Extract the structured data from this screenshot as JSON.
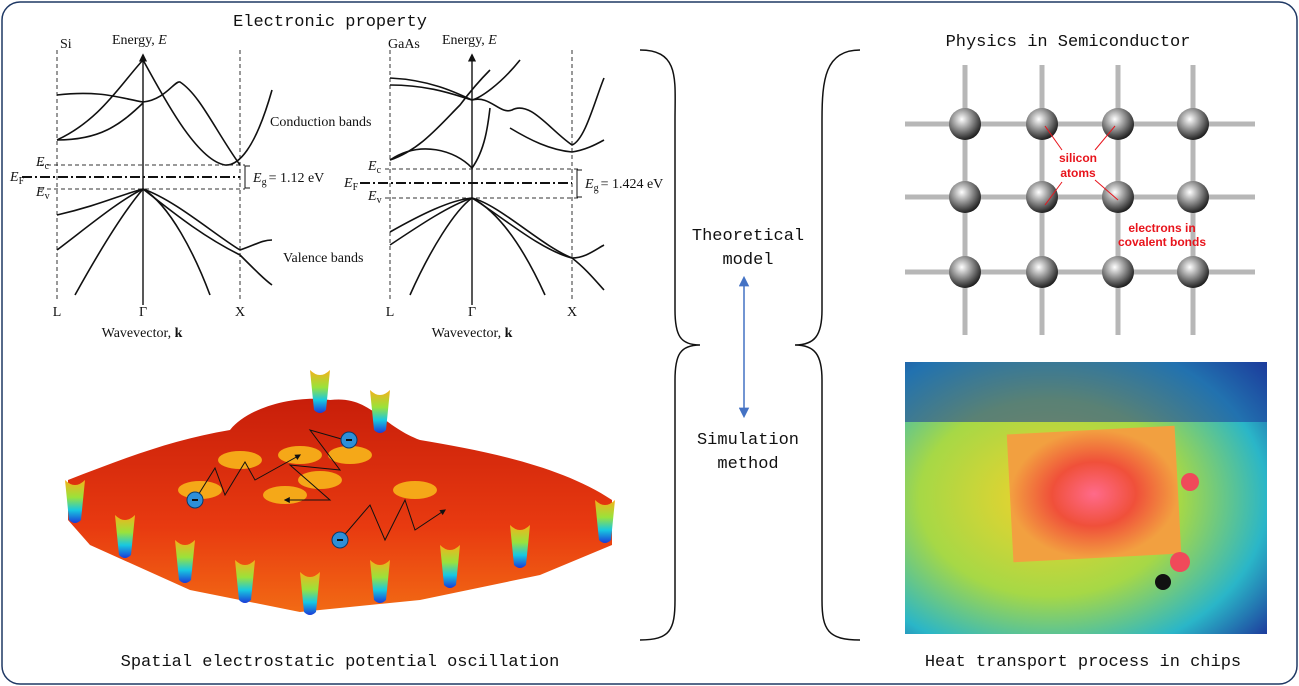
{
  "electronic_property": {
    "title": "Electronic property",
    "panels": [
      {
        "material": "Si",
        "energy_axis": [
          "Energy, ",
          "E"
        ],
        "wavevector_axis": [
          "Wavevector, ",
          "k"
        ],
        "ec": [
          "E",
          "c"
        ],
        "ef": [
          "E",
          "F"
        ],
        "ev": [
          "E",
          "v"
        ],
        "eg": [
          "E",
          "g",
          "= 1.12 eV"
        ],
        "points": [
          "L",
          "Γ",
          "X"
        ],
        "conduction": "Conduction bands",
        "valence": "Valence bands"
      },
      {
        "material": "GaAs",
        "energy_axis": [
          "Energy, ",
          "E"
        ],
        "wavevector_axis": [
          "Wavevector, ",
          "k"
        ],
        "ec": [
          "E",
          "c"
        ],
        "ef": [
          "E",
          "F"
        ],
        "ev": [
          "E",
          "v"
        ],
        "eg": [
          "E",
          "g",
          "= 1.424 eV"
        ],
        "points": [
          "L",
          "Γ",
          "X"
        ]
      }
    ]
  },
  "potential": {
    "caption": "Spatial electrostatic potential oscillation"
  },
  "middle": {
    "theory": [
      "Theoretical",
      "model"
    ],
    "simulation": [
      "Simulation",
      "method"
    ]
  },
  "physics": {
    "title": "Physics in Semiconductor",
    "atoms_label": [
      "silicon",
      "atoms"
    ],
    "electrons_label": [
      "electrons in",
      "covalent bonds"
    ]
  },
  "heat": {
    "caption": "Heat transport process in chips"
  }
}
